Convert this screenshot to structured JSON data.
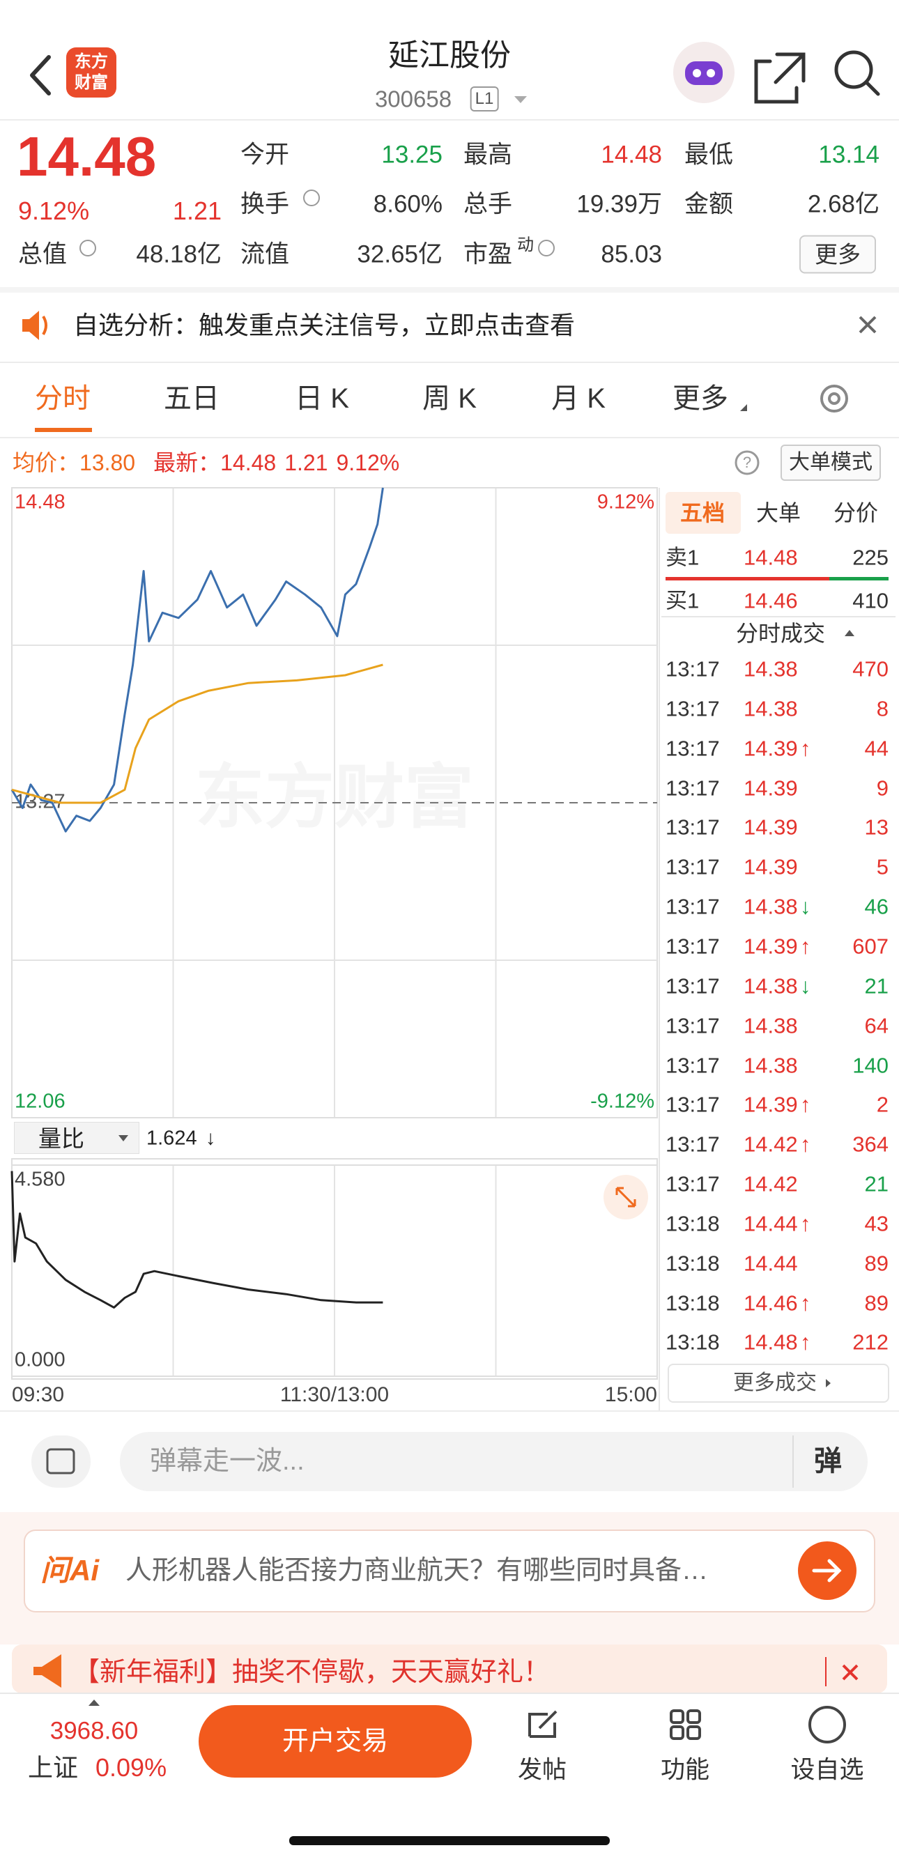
{
  "header": {
    "title": "延江股份",
    "code": "300658",
    "level": "L1",
    "logo": [
      "东方",
      "财富"
    ]
  },
  "quote": {
    "price": "14.48",
    "change_pct": "9.12%",
    "change": "1.21",
    "open_label": "今开",
    "open": "13.25",
    "high_label": "最高",
    "high": "14.48",
    "low_label": "最低",
    "low": "13.14",
    "turnover_label": "换手",
    "turnover": "8.60%",
    "volume_label": "总手",
    "volume": "19.39万",
    "amount_label": "金额",
    "amount": "2.68亿",
    "cap_label": "总值",
    "cap": "48.18亿",
    "float_label": "流值",
    "float": "32.65亿",
    "pe_label": "市盈",
    "pe_sup": "动",
    "pe": "85.03",
    "more": "更多"
  },
  "notice": "自选分析：触发重点关注信号，立即点击查看",
  "tabs": [
    "分时",
    "五日",
    "日 K",
    "周 K",
    "月 K",
    "更多"
  ],
  "info_bar": {
    "avg_label": "均价：",
    "avg": "13.80",
    "last_label": "最新：",
    "last": "14.48",
    "change": "1.21",
    "change_pct": "9.12%",
    "mode": "大单模式"
  },
  "chart_data": [
    {
      "type": "line",
      "watermark": "东方财富",
      "xlim": [
        0,
        240
      ],
      "xticks": [
        {
          "value": 0,
          "label": "09:30"
        },
        {
          "value": 120,
          "label": "11:30/13:00"
        },
        {
          "value": 240,
          "label": "15:00"
        }
      ],
      "ylim": [
        12.06,
        14.48
      ],
      "yticks": [
        14.48,
        13.27,
        12.06
      ],
      "y2lim": [
        -9.12,
        9.12
      ],
      "y2ticks": [
        {
          "value": 9.12,
          "label": "9.12%"
        },
        {
          "value": -9.12,
          "label": "-9.12%"
        }
      ],
      "grid_x": [
        60,
        120,
        180
      ],
      "grid_y": [
        13.875,
        12.665
      ],
      "series": [
        {
          "color": "#3b6fae",
          "x": [
            0,
            4,
            7,
            11,
            15,
            20,
            24,
            29,
            33,
            38,
            42,
            45,
            49,
            51,
            56,
            62,
            69,
            74,
            80,
            86,
            91,
            98,
            102,
            109,
            115,
            121,
            124,
            128,
            133,
            136,
            138
          ],
          "values": [
            13.32,
            13.25,
            13.34,
            13.28,
            13.27,
            13.16,
            13.22,
            13.2,
            13.25,
            13.34,
            13.61,
            13.8,
            14.16,
            13.89,
            14.0,
            13.98,
            14.05,
            14.16,
            14.02,
            14.07,
            13.95,
            14.05,
            14.12,
            14.07,
            14.02,
            13.91,
            14.07,
            14.11,
            14.25,
            14.34,
            14.48
          ]
        },
        {
          "color": "#e8a21c",
          "x": [
            0,
            18,
            33,
            42,
            46,
            51,
            62,
            73,
            88,
            106,
            124,
            138
          ],
          "values": [
            13.32,
            13.27,
            13.27,
            13.32,
            13.48,
            13.59,
            13.66,
            13.7,
            13.73,
            13.74,
            13.76,
            13.8
          ]
        }
      ]
    },
    {
      "type": "line",
      "title": "量比",
      "current": "1.624",
      "current_arrow": "↓",
      "xlim": [
        0,
        240
      ],
      "ylim": [
        0,
        4.58
      ],
      "yticks": [
        {
          "value": 4.58,
          "label": "4.580"
        },
        {
          "value": 0,
          "label": "0.000"
        }
      ],
      "grid_x": [
        60,
        120,
        180
      ],
      "series": [
        {
          "color": "#222222",
          "x": [
            0,
            1,
            3,
            5,
            9,
            13,
            20,
            27,
            33,
            38,
            42,
            46,
            49,
            53,
            62,
            75,
            88,
            102,
            115,
            128,
            138
          ],
          "values": [
            4.45,
            2.49,
            3.53,
            3.01,
            2.88,
            2.49,
            2.09,
            1.83,
            1.65,
            1.49,
            1.7,
            1.83,
            2.22,
            2.28,
            2.17,
            2.02,
            1.88,
            1.78,
            1.65,
            1.6,
            1.6
          ]
        }
      ]
    }
  ],
  "order_book": {
    "tabs": [
      "五档",
      "大单",
      "分价"
    ],
    "rows": [
      {
        "label": "卖1",
        "price": "14.48",
        "qty": "225"
      },
      {
        "label": "买1",
        "price": "14.46",
        "qty": "410"
      }
    ]
  },
  "trades": {
    "title": "分时成交",
    "more": "更多成交",
    "rows": [
      {
        "time": "13:17",
        "price": "14.38",
        "qty": "470",
        "color": "#e4332d"
      },
      {
        "time": "13:17",
        "price": "14.38",
        "qty": "8",
        "color": "#e4332d"
      },
      {
        "time": "13:17",
        "price": "14.39",
        "mark": "↑",
        "qty": "44",
        "color": "#e4332d"
      },
      {
        "time": "13:17",
        "price": "14.39",
        "qty": "9",
        "color": "#e4332d"
      },
      {
        "time": "13:17",
        "price": "14.39",
        "qty": "13",
        "color": "#e4332d"
      },
      {
        "time": "13:17",
        "price": "14.39",
        "qty": "5",
        "color": "#e4332d"
      },
      {
        "time": "13:17",
        "price": "14.38",
        "mark": "↓",
        "qty": "46",
        "color": "#19a04a"
      },
      {
        "time": "13:17",
        "price": "14.39",
        "mark": "↑",
        "qty": "607",
        "color": "#e4332d"
      },
      {
        "time": "13:17",
        "price": "14.38",
        "mark": "↓",
        "qty": "21",
        "color": "#19a04a"
      },
      {
        "time": "13:17",
        "price": "14.38",
        "qty": "64",
        "color": "#e4332d"
      },
      {
        "time": "13:17",
        "price": "14.38",
        "qty": "140",
        "color": "#19a04a"
      },
      {
        "time": "13:17",
        "price": "14.39",
        "mark": "↑",
        "qty": "2",
        "color": "#e4332d"
      },
      {
        "time": "13:17",
        "price": "14.42",
        "mark": "↑",
        "qty": "364",
        "color": "#e4332d"
      },
      {
        "time": "13:17",
        "price": "14.42",
        "qty": "21",
        "color": "#19a04a"
      },
      {
        "time": "13:18",
        "price": "14.44",
        "mark": "↑",
        "qty": "43",
        "color": "#e4332d"
      },
      {
        "time": "13:18",
        "price": "14.44",
        "qty": "89",
        "color": "#e4332d"
      },
      {
        "time": "13:18",
        "price": "14.46",
        "mark": "↑",
        "qty": "89",
        "color": "#e4332d"
      },
      {
        "time": "13:18",
        "price": "14.48",
        "mark": "↑",
        "qty": "212",
        "color": "#e4332d"
      }
    ]
  },
  "comment": {
    "placeholder": "弹幕走一波...",
    "button": "弹"
  },
  "ask_ai": {
    "logo": "问Ai",
    "question": "人形机器人能否接力商业航天？有哪些同时具备…"
  },
  "banner": "【新年福利】抽奖不停歇，天天赢好礼！",
  "bottom_nav": {
    "index_value": "3968.60",
    "index_name": "上证",
    "index_change": "0.09%",
    "trade": "开户交易",
    "items": [
      "发帖",
      "功能",
      "设自选"
    ]
  }
}
